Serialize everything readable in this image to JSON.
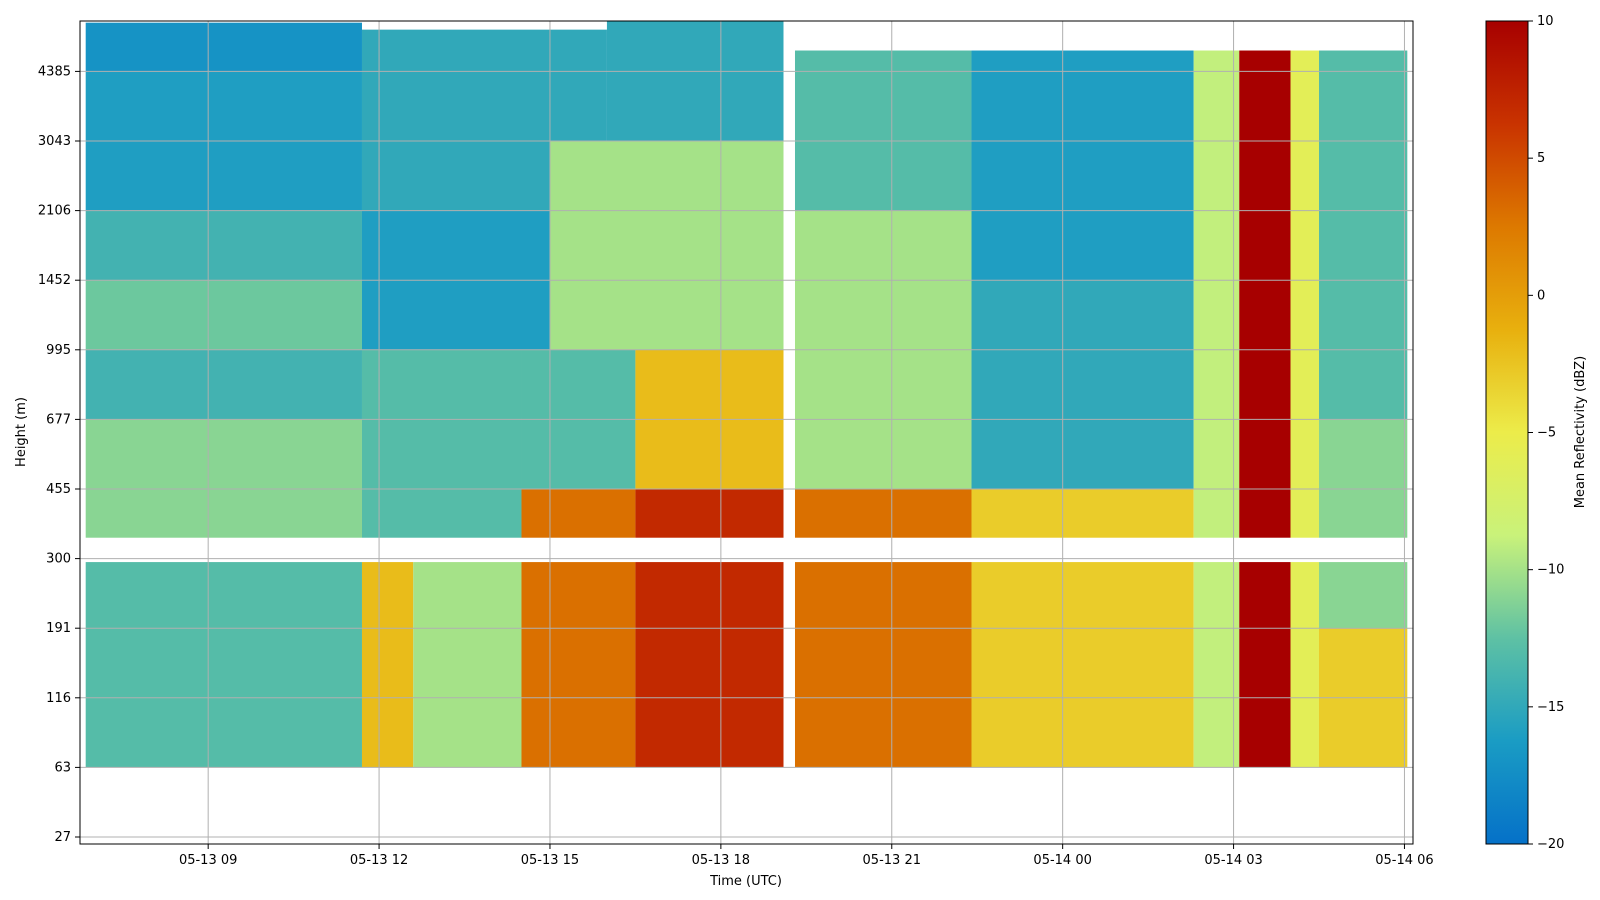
{
  "chart_data": {
    "type": "heatmap",
    "title": "",
    "xlabel": "Time (UTC)",
    "ylabel": "Height (m)",
    "x_ticks": [
      "05-13 09",
      "05-13 12",
      "05-13 15",
      "05-13 18",
      "05-13 21",
      "05-14 00",
      "05-14 03",
      "05-14 06"
    ],
    "y_ticks": [
      "27",
      "63",
      "116",
      "191",
      "300",
      "455",
      "677",
      "995",
      "1452",
      "2106",
      "3043",
      "4385"
    ],
    "x_range_hours": [
      6.75,
      30.15
    ],
    "time_axis_origin": "05-13 00",
    "grid": true,
    "colorbar": {
      "label": "Mean Reflectivity (dBZ)",
      "min": -20,
      "max": 10,
      "ticks": [
        "10",
        "5",
        "0",
        "−5",
        "−10",
        "−15",
        "−20"
      ],
      "colors": [
        "#0571c8",
        "#1a9cc4",
        "#5ec1a4",
        "#c9f27a",
        "#ecec4a",
        "#e8b00e",
        "#dd7900",
        "#c93300",
        "#a70000"
      ]
    },
    "cells": [
      {
        "t0": 6.85,
        "t1": 11.7,
        "h0": 1,
        "h1": 4,
        "v": -13
      },
      {
        "t0": 6.85,
        "t1": 11.7,
        "h0": 4,
        "h1": 6,
        "v": -11
      },
      {
        "t0": 6.85,
        "t1": 11.7,
        "h0": 6,
        "h1": 7,
        "v": -14
      },
      {
        "t0": 6.85,
        "t1": 11.7,
        "h0": 7,
        "h1": 8,
        "v": -12
      },
      {
        "t0": 6.85,
        "t1": 11.7,
        "h0": 8,
        "h1": 9,
        "v": -14
      },
      {
        "t0": 6.85,
        "t1": 11.7,
        "h0": 9,
        "h1": 10,
        "v": -16
      },
      {
        "t0": 6.85,
        "t1": 11.7,
        "h0": 10,
        "h1": 11,
        "v": -16
      },
      {
        "t0": 6.85,
        "t1": 11.7,
        "h0": 11,
        "h1": 11.7,
        "v": -17
      },
      {
        "t0": 11.7,
        "t1": 12.6,
        "h0": 1,
        "h1": 5,
        "v": -2
      },
      {
        "t0": 12.6,
        "t1": 14.5,
        "h0": 1,
        "h1": 4,
        "v": -10
      },
      {
        "t0": 11.7,
        "t1": 14.5,
        "h0": 4,
        "h1": 7,
        "v": -13
      },
      {
        "t0": 11.7,
        "t1": 15,
        "h0": 7,
        "h1": 9,
        "v": -16
      },
      {
        "t0": 11.7,
        "t1": 16,
        "h0": 9,
        "h1": 11.6,
        "v": -15
      },
      {
        "t0": 14.5,
        "t1": 16.5,
        "h0": 1,
        "h1": 5,
        "v": 3
      },
      {
        "t0": 14.5,
        "t1": 16.5,
        "h0": 5,
        "h1": 7,
        "v": -13
      },
      {
        "t0": 16.5,
        "t1": 19.1,
        "h0": 1,
        "h1": 5,
        "v": 7
      },
      {
        "t0": 16.5,
        "t1": 19.1,
        "h0": 5,
        "h1": 8,
        "v": -2
      },
      {
        "t0": 15,
        "t1": 19.1,
        "h0": 7,
        "h1": 10,
        "v": -10
      },
      {
        "t0": 16,
        "t1": 19.1,
        "h0": 10,
        "h1": 12.2,
        "v": -15
      },
      {
        "t0": 19.3,
        "t1": 22.4,
        "h0": 1,
        "h1": 5,
        "v": 3
      },
      {
        "t0": 19.3,
        "t1": 22.4,
        "h0": 5,
        "h1": 9,
        "v": -10
      },
      {
        "t0": 19.3,
        "t1": 22.4,
        "h0": 9,
        "h1": 11.3,
        "v": -13
      },
      {
        "t0": 22.4,
        "t1": 26.3,
        "h0": 1,
        "h1": 5,
        "v": -3
      },
      {
        "t0": 22.4,
        "t1": 26.3,
        "h0": 5,
        "h1": 8,
        "v": -15
      },
      {
        "t0": 22.4,
        "t1": 26.3,
        "h0": 8,
        "h1": 11.3,
        "v": -16
      },
      {
        "t0": 26.3,
        "t1": 27.1,
        "h0": 1,
        "h1": 11.3,
        "v": -9
      },
      {
        "t0": 27.1,
        "t1": 28.0,
        "h0": 1,
        "h1": 11.3,
        "v": 10
      },
      {
        "t0": 28.0,
        "t1": 28.5,
        "h0": 1,
        "h1": 11.3,
        "v": -6
      },
      {
        "t0": 28.5,
        "t1": 30.05,
        "h0": 1,
        "h1": 3,
        "v": -3
      },
      {
        "t0": 28.5,
        "t1": 30.05,
        "h0": 3,
        "h1": 6,
        "v": -11
      },
      {
        "t0": 28.5,
        "t1": 30.05,
        "h0": 6,
        "h1": 11.3,
        "v": -13
      }
    ]
  }
}
